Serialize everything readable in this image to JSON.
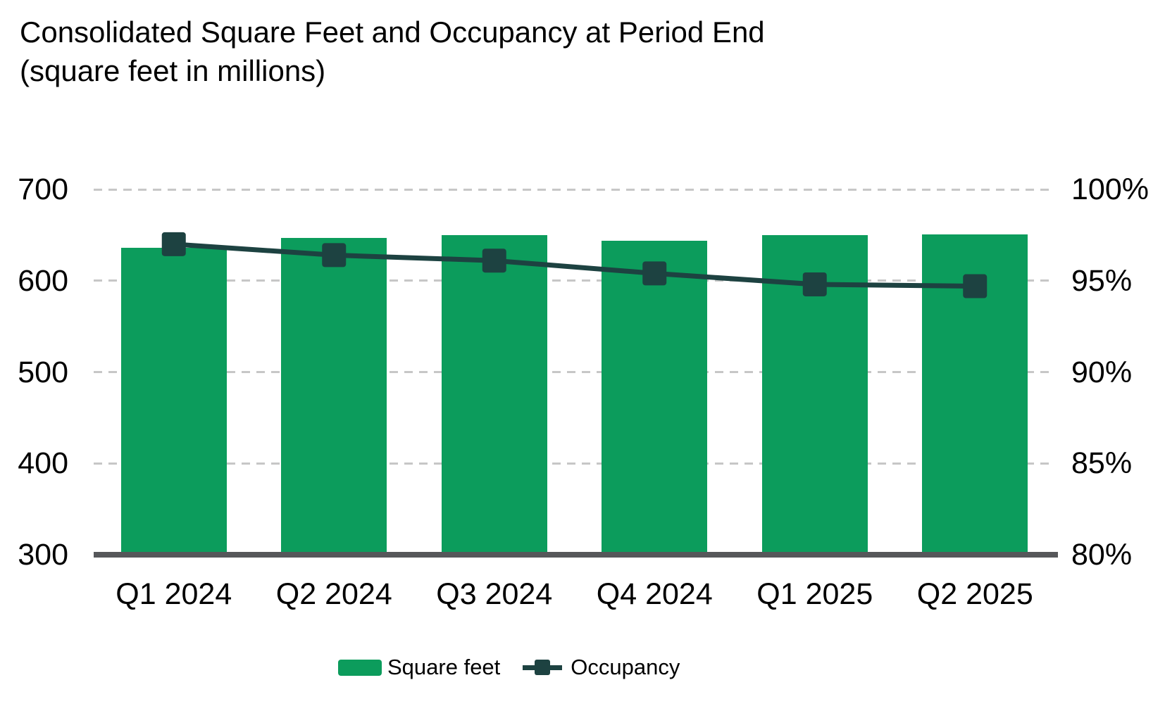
{
  "chart": {
    "title": "Consolidated Square Feet and Occupancy at Period End",
    "subtitle": "(square feet in millions)"
  },
  "chart_data": {
    "type": "bar+line combo",
    "title": "Consolidated Square Feet and Occupancy at Period End",
    "subtitle": "(square feet in millions)",
    "categories": [
      "Q1 2024",
      "Q2 2024",
      "Q3 2024",
      "Q4 2024",
      "Q1 2025",
      "Q2 2025"
    ],
    "series": [
      {
        "name": "Square feet",
        "type": "bar",
        "axis": "left",
        "color": "#0c9c5c",
        "values": [
          636,
          647,
          650,
          644,
          650,
          651
        ]
      },
      {
        "name": "Occupancy",
        "type": "line",
        "axis": "right",
        "color": "#1d4241",
        "marker": "square",
        "values_pct": [
          97.0,
          96.4,
          96.1,
          95.4,
          94.8,
          94.7
        ]
      }
    ],
    "left_axis": {
      "min": 300,
      "max": 700,
      "ticks": [
        700,
        600,
        500,
        400,
        300
      ]
    },
    "right_axis": {
      "min": 80,
      "max": 100,
      "ticks": [
        "100%",
        "95%",
        "90%",
        "85%",
        "80%"
      ]
    },
    "grid": "horizontal dashed",
    "legend_position": "bottom",
    "colors": {
      "bar": "#0c9c5c",
      "line": "#1d4241",
      "gridline": "#c7c7c7",
      "axis_baseline": "#56575a",
      "text": "#000000"
    }
  }
}
